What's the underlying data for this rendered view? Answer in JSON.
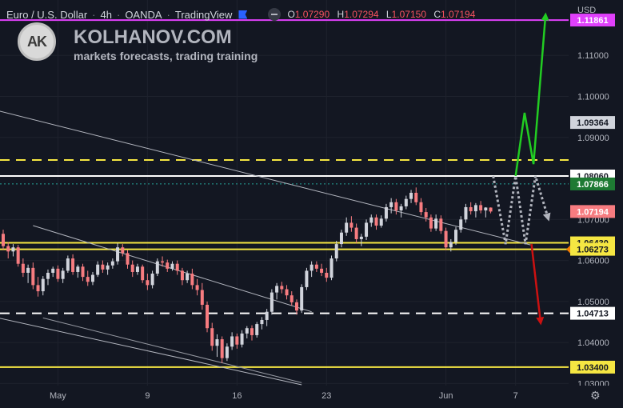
{
  "header": {
    "symbol": "Euro / U.S. Dollar",
    "interval": "4h",
    "exchange": "OANDA",
    "platform": "TradingView",
    "ohlc": {
      "o_label": "O",
      "o": "1.07290",
      "h_label": "H",
      "h": "1.07294",
      "l_label": "L",
      "l": "1.07150",
      "c_label": "C",
      "c": "1.07194"
    }
  },
  "brand": {
    "logo_text": "AK",
    "name": "KOLHANOV.COM",
    "tagline": "markets forecasts, trading training"
  },
  "axis": {
    "currency": "USD"
  },
  "colors": {
    "background": "#131722",
    "up": "#d1d4dc",
    "down": "#f77c80",
    "magenta": "#e040fb",
    "yellow": "#f5e642",
    "green": "#22cc22",
    "red": "#cc1111"
  },
  "chart_data": {
    "type": "candlestick",
    "ylim": [
      1.0295,
      1.1235
    ],
    "y_ticks": [
      "1.11000",
      "1.10000",
      "1.09000",
      "1.07000",
      "1.06000",
      "1.05000",
      "1.04000",
      "1.03000"
    ],
    "x_ticks": [
      {
        "label": "May",
        "index": 11
      },
      {
        "label": "9",
        "index": 29
      },
      {
        "label": "16",
        "index": 47
      },
      {
        "label": "23",
        "index": 65
      },
      {
        "label": "Jun",
        "index": 89
      },
      {
        "label": "7",
        "index": 103
      }
    ],
    "candles_count": 99,
    "candles": [
      [
        1.0665,
        1.0675,
        1.0625,
        1.0635
      ],
      [
        1.0635,
        1.0645,
        1.0605,
        1.0622
      ],
      [
        1.0622,
        1.064,
        1.061,
        1.0632
      ],
      [
        1.0632,
        1.0638,
        1.0585,
        1.0592
      ],
      [
        1.0592,
        1.0605,
        1.056,
        1.057
      ],
      [
        1.057,
        1.059,
        1.0545,
        1.0582
      ],
      [
        1.0582,
        1.0595,
        1.053,
        1.054
      ],
      [
        1.054,
        1.056,
        1.0512,
        1.0525
      ],
      [
        1.0525,
        1.0562,
        1.0515,
        1.0555
      ],
      [
        1.0555,
        1.0578,
        1.054,
        1.057
      ],
      [
        1.057,
        1.0585,
        1.056,
        1.058
      ],
      [
        1.058,
        1.0588,
        1.0548,
        1.0555
      ],
      [
        1.0555,
        1.0582,
        1.0545,
        1.0575
      ],
      [
        1.0575,
        1.0612,
        1.057,
        1.0605
      ],
      [
        1.0605,
        1.0615,
        1.0565,
        1.0572
      ],
      [
        1.0572,
        1.059,
        1.0558,
        1.0585
      ],
      [
        1.0585,
        1.0592,
        1.055,
        1.056
      ],
      [
        1.056,
        1.0575,
        1.0538,
        1.0548
      ],
      [
        1.0548,
        1.0572,
        1.054,
        1.0565
      ],
      [
        1.0565,
        1.0598,
        1.056,
        1.059
      ],
      [
        1.059,
        1.06,
        1.057,
        1.0578
      ],
      [
        1.0578,
        1.0595,
        1.0565,
        1.0588
      ],
      [
        1.0588,
        1.0605,
        1.058,
        1.0598
      ],
      [
        1.0598,
        1.0642,
        1.059,
        1.0632
      ],
      [
        1.0632,
        1.064,
        1.061,
        1.0618
      ],
      [
        1.0618,
        1.0625,
        1.058,
        1.059
      ],
      [
        1.059,
        1.06,
        1.056,
        1.0572
      ],
      [
        1.0572,
        1.0592,
        1.0565,
        1.0585
      ],
      [
        1.0585,
        1.059,
        1.0545,
        1.0552
      ],
      [
        1.0552,
        1.0568,
        1.0528,
        1.054
      ],
      [
        1.054,
        1.0575,
        1.0532,
        1.0568
      ],
      [
        1.0568,
        1.0605,
        1.0562,
        1.0598
      ],
      [
        1.0598,
        1.061,
        1.0585,
        1.0595
      ],
      [
        1.0595,
        1.0602,
        1.0572,
        1.058
      ],
      [
        1.058,
        1.0598,
        1.0575,
        1.0592
      ],
      [
        1.0592,
        1.06,
        1.0565,
        1.0575
      ],
      [
        1.0575,
        1.0582,
        1.054,
        1.0552
      ],
      [
        1.0552,
        1.0575,
        1.0545,
        1.0568
      ],
      [
        1.0568,
        1.058,
        1.053,
        1.054
      ],
      [
        1.054,
        1.0555,
        1.0515,
        1.0528
      ],
      [
        1.0528,
        1.0545,
        1.048,
        1.0492
      ],
      [
        1.0492,
        1.05,
        1.0425,
        1.0435
      ],
      [
        1.0435,
        1.0448,
        1.038,
        1.0392
      ],
      [
        1.0392,
        1.042,
        1.0365,
        1.0408
      ],
      [
        1.0408,
        1.0415,
        1.035,
        1.0362
      ],
      [
        1.0362,
        1.0398,
        1.0355,
        1.039
      ],
      [
        1.039,
        1.0425,
        1.0382,
        1.0415
      ],
      [
        1.0415,
        1.0422,
        1.0385,
        1.0395
      ],
      [
        1.0395,
        1.043,
        1.0388,
        1.0422
      ],
      [
        1.0422,
        1.044,
        1.041,
        1.0435
      ],
      [
        1.0435,
        1.0442,
        1.0405,
        1.0418
      ],
      [
        1.0418,
        1.045,
        1.0412,
        1.0445
      ],
      [
        1.0445,
        1.0462,
        1.0432,
        1.0455
      ],
      [
        1.0455,
        1.0482,
        1.044,
        1.0475
      ],
      [
        1.0475,
        1.053,
        1.0468,
        1.0522
      ],
      [
        1.0522,
        1.0545,
        1.0505,
        1.0538
      ],
      [
        1.0538,
        1.0548,
        1.052,
        1.053
      ],
      [
        1.053,
        1.054,
        1.0505,
        1.0515
      ],
      [
        1.0515,
        1.0525,
        1.049,
        1.0498
      ],
      [
        1.0498,
        1.0505,
        1.0468,
        1.0478
      ],
      [
        1.0478,
        1.0542,
        1.0472,
        1.0535
      ],
      [
        1.0535,
        1.0582,
        1.0528,
        1.0575
      ],
      [
        1.0575,
        1.0598,
        1.056,
        1.059
      ],
      [
        1.059,
        1.0598,
        1.0572,
        1.058
      ],
      [
        1.058,
        1.0592,
        1.0562,
        1.057
      ],
      [
        1.057,
        1.0582,
        1.0548,
        1.0558
      ],
      [
        1.0558,
        1.0612,
        1.0552,
        1.0605
      ],
      [
        1.0605,
        1.0648,
        1.0598,
        1.064
      ],
      [
        1.064,
        1.0675,
        1.0632,
        1.0668
      ],
      [
        1.0668,
        1.0705,
        1.066,
        1.0692
      ],
      [
        1.0692,
        1.0708,
        1.067,
        1.068
      ],
      [
        1.068,
        1.069,
        1.0642,
        1.0652
      ],
      [
        1.0652,
        1.0665,
        1.0635,
        1.0658
      ],
      [
        1.0658,
        1.07,
        1.065,
        1.0692
      ],
      [
        1.0692,
        1.0712,
        1.0682,
        1.0705
      ],
      [
        1.0705,
        1.0712,
        1.0675,
        1.0685
      ],
      [
        1.0685,
        1.071,
        1.068,
        1.0702
      ],
      [
        1.0702,
        1.0738,
        1.0695,
        1.073
      ],
      [
        1.073,
        1.0752,
        1.0715,
        1.0742
      ],
      [
        1.0742,
        1.075,
        1.0712,
        1.0722
      ],
      [
        1.0722,
        1.0738,
        1.0705,
        1.0732
      ],
      [
        1.0732,
        1.0758,
        1.0725,
        1.075
      ],
      [
        1.075,
        1.0772,
        1.074,
        1.0765
      ],
      [
        1.0765,
        1.0778,
        1.0735,
        1.0742
      ],
      [
        1.0742,
        1.0752,
        1.071,
        1.0718
      ],
      [
        1.0718,
        1.0728,
        1.0695,
        1.0705
      ],
      [
        1.0705,
        1.0712,
        1.067,
        1.0678
      ],
      [
        1.0678,
        1.0712,
        1.0672,
        1.0702
      ],
      [
        1.0702,
        1.071,
        1.0665,
        1.0672
      ],
      [
        1.0672,
        1.068,
        1.0625,
        1.0632
      ],
      [
        1.0632,
        1.0652,
        1.0622,
        1.0645
      ],
      [
        1.0645,
        1.0682,
        1.0638,
        1.0675
      ],
      [
        1.0675,
        1.0708,
        1.0668,
        1.07
      ],
      [
        1.07,
        1.0738,
        1.0692,
        1.073
      ],
      [
        1.073,
        1.0742,
        1.0712,
        1.072
      ],
      [
        1.072,
        1.074,
        1.0705,
        1.0735
      ],
      [
        1.0735,
        1.0745,
        1.0715,
        1.0722
      ],
      [
        1.0722,
        1.073,
        1.0705,
        1.0729
      ],
      [
        1.0729,
        1.07294,
        1.0715,
        1.07194
      ]
    ],
    "horizontal_levels": [
      {
        "price": 1.11861,
        "label": "1.11861",
        "color": "#e040fb",
        "style": "solid"
      },
      {
        "price": 1.09364,
        "label": "1.09364",
        "color": "#b2b5be",
        "style": "label-only"
      },
      {
        "price": 1.0845,
        "label": "",
        "color": "#f5e642",
        "style": "dashed"
      },
      {
        "price": 1.0806,
        "label": "1.08060",
        "color": "#ffffff",
        "style": "solid"
      },
      {
        "price": 1.07866,
        "label": "1.07866",
        "color": "#26a69a",
        "style": "dotted"
      },
      {
        "price": 1.07194,
        "label": "1.07194",
        "color": "#f77c80",
        "style": "current"
      },
      {
        "price": 1.0643,
        "label": "1.06430",
        "color": "#f5e642",
        "style": "solid"
      },
      {
        "price": 1.06273,
        "label": "1.06273",
        "color": "#f5e642",
        "style": "solid"
      },
      {
        "price": 1.04713,
        "label": "1.04713",
        "color": "#ffffff",
        "style": "dashed"
      },
      {
        "price": 1.034,
        "label": "1.03400",
        "color": "#f5e642",
        "style": "solid"
      }
    ],
    "trend_lines": [
      {
        "from": [
          -1,
          1.0965
        ],
        "to": [
          106,
          1.0638
        ],
        "color": "#b2b5be"
      },
      {
        "from": [
          6,
          1.0685
        ],
        "to": [
          62,
          1.0475
        ],
        "color": "#b2b5be"
      },
      {
        "from": [
          -1,
          1.046
        ],
        "to": [
          60,
          1.0297
        ],
        "color": "#b2b5be"
      },
      {
        "from": [
          8,
          1.046
        ],
        "to": [
          60,
          1.0302
        ],
        "color": "#9598a1"
      }
    ],
    "forecast": {
      "gray_path": [
        [
          98.5,
          1.0806
        ],
        [
          101,
          1.064
        ],
        [
          103,
          1.0806
        ],
        [
          105,
          1.064
        ],
        [
          107,
          1.0806
        ],
        [
          109.5,
          1.0705
        ]
      ],
      "green_path": [
        [
          103,
          1.0806
        ],
        [
          104.8,
          1.096
        ],
        [
          106.6,
          1.0835
        ],
        [
          109,
          1.1195
        ]
      ],
      "red_path": [
        [
          106.2,
          1.064
        ],
        [
          108,
          1.0452
        ]
      ]
    }
  }
}
